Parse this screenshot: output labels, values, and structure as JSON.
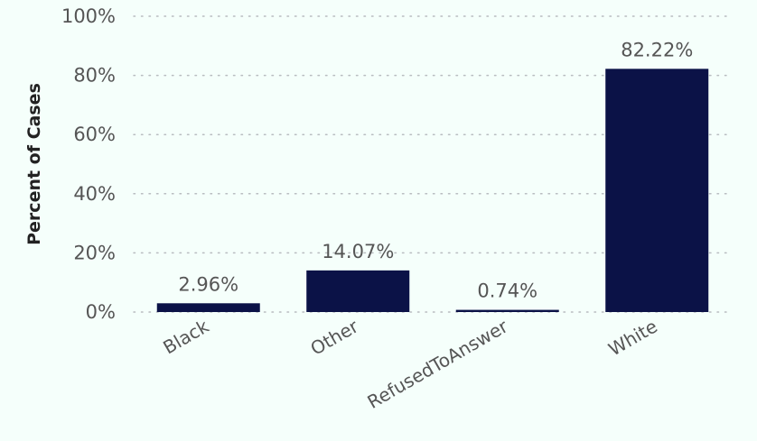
{
  "chart_data": {
    "type": "bar",
    "categories": [
      "Black",
      "Other",
      "RefusedToAnswer",
      "White"
    ],
    "values": [
      2.96,
      14.07,
      0.74,
      82.22
    ],
    "data_labels": [
      "2.96%",
      "14.07%",
      "0.74%",
      "82.22%"
    ],
    "title": "",
    "xlabel": "",
    "ylabel": "Percent of Cases",
    "ylim": [
      0,
      100
    ],
    "yticks": [
      0,
      20,
      40,
      60,
      80,
      100
    ],
    "ytick_labels": [
      "0%",
      "20%",
      "40%",
      "60%",
      "80%",
      "100%"
    ],
    "grid": true,
    "legend": "none",
    "bar_color": "#0b1247",
    "background_color": "#f5fffb"
  }
}
